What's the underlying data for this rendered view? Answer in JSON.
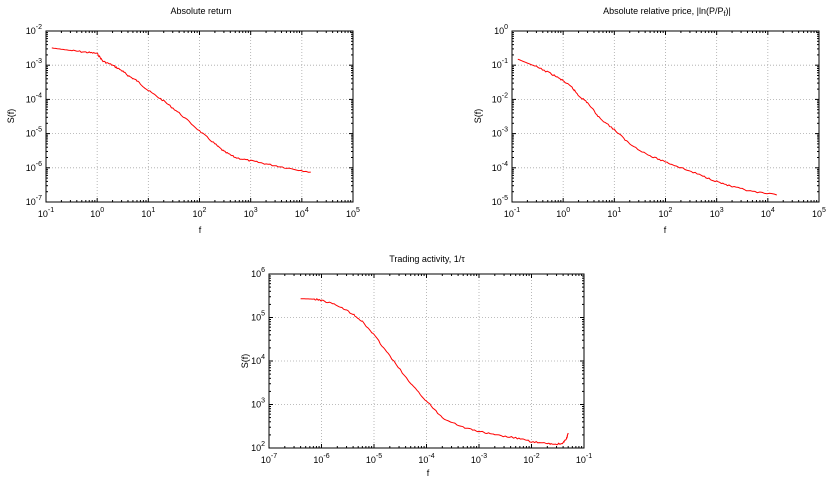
{
  "charts": [
    {
      "type": "line",
      "title": "Absolute return",
      "xlabel": "f",
      "ylabel": "S(f)",
      "x_scale": "log",
      "y_scale": "log",
      "xlim": [
        0.1,
        100000
      ],
      "ylim": [
        1e-07,
        0.01
      ],
      "x_tick_labels": [
        {
          "base": "10",
          "exp": "-1"
        },
        {
          "base": "10",
          "exp": "0"
        },
        {
          "base": "10",
          "exp": "1"
        },
        {
          "base": "10",
          "exp": "2"
        },
        {
          "base": "10",
          "exp": "3"
        },
        {
          "base": "10",
          "exp": "4"
        },
        {
          "base": "10",
          "exp": "5"
        }
      ],
      "y_tick_labels": [
        {
          "base": "10",
          "exp": "-7"
        },
        {
          "base": "10",
          "exp": "-6"
        },
        {
          "base": "10",
          "exp": "-5"
        },
        {
          "base": "10",
          "exp": "-4"
        },
        {
          "base": "10",
          "exp": "-3"
        },
        {
          "base": "10",
          "exp": "-2"
        }
      ],
      "grid": true,
      "series_color": "#ff0000",
      "series": [
        {
          "x": [
            0.13,
            0.3,
            0.6,
            1.0,
            1.3,
            2.0,
            3.0,
            4.0,
            6.0,
            10,
            20,
            40,
            100,
            200,
            300,
            500,
            1000,
            2000,
            5000,
            15000
          ],
          "y": [
            0.0032,
            0.0027,
            0.0024,
            0.0022,
            0.0013,
            0.001,
            0.0007,
            0.0005,
            0.00035,
            0.00018,
            9e-05,
            4e-05,
            1.2e-05,
            5e-06,
            3e-06,
            2e-06,
            1.6e-06,
            1.3e-06,
            1e-06,
            7.5e-07
          ]
        }
      ]
    },
    {
      "type": "line",
      "title_prefix": "Absolute relative price, |ln(P/P",
      "title_sub": "f",
      "title_suffix": ")|",
      "xlabel": "f",
      "ylabel": "S(f)",
      "x_scale": "log",
      "y_scale": "log",
      "xlim": [
        0.1,
        100000
      ],
      "ylim": [
        1e-05,
        1
      ],
      "x_tick_labels": [
        {
          "base": "10",
          "exp": "-1"
        },
        {
          "base": "10",
          "exp": "0"
        },
        {
          "base": "10",
          "exp": "1"
        },
        {
          "base": "10",
          "exp": "2"
        },
        {
          "base": "10",
          "exp": "3"
        },
        {
          "base": "10",
          "exp": "4"
        },
        {
          "base": "10",
          "exp": "5"
        }
      ],
      "y_tick_labels": [
        {
          "base": "10",
          "exp": "-5"
        },
        {
          "base": "10",
          "exp": "-4"
        },
        {
          "base": "10",
          "exp": "-3"
        },
        {
          "base": "10",
          "exp": "-2"
        },
        {
          "base": "10",
          "exp": "-1"
        },
        {
          "base": "10",
          "exp": "0"
        }
      ],
      "grid": true,
      "series_color": "#ff0000",
      "series": [
        {
          "x": [
            0.13,
            0.3,
            0.6,
            1.0,
            1.5,
            2.0,
            3.0,
            5.0,
            10,
            20,
            50,
            100,
            200,
            500,
            1000,
            2000,
            5000,
            15000
          ],
          "y": [
            0.15,
            0.09,
            0.055,
            0.035,
            0.022,
            0.013,
            0.008,
            0.003,
            0.0013,
            0.0005,
            0.00022,
            0.00015,
            0.0001,
            6e-05,
            4e-05,
            2.8e-05,
            2e-05,
            1.6e-05
          ]
        }
      ]
    },
    {
      "type": "line",
      "title_prefix": "Trading activity, 1/",
      "title_symbol": "τ",
      "xlabel": "f",
      "ylabel": "S(f)",
      "x_scale": "log",
      "y_scale": "log",
      "xlim": [
        1e-07,
        0.1
      ],
      "ylim": [
        100,
        1000000
      ],
      "x_tick_labels": [
        {
          "base": "10",
          "exp": "-7"
        },
        {
          "base": "10",
          "exp": "-6"
        },
        {
          "base": "10",
          "exp": "-5"
        },
        {
          "base": "10",
          "exp": "-4"
        },
        {
          "base": "10",
          "exp": "-3"
        },
        {
          "base": "10",
          "exp": "-2"
        },
        {
          "base": "10",
          "exp": "-1"
        }
      ],
      "y_tick_labels": [
        {
          "base": "10",
          "exp": "2"
        },
        {
          "base": "10",
          "exp": "3"
        },
        {
          "base": "10",
          "exp": "4"
        },
        {
          "base": "10",
          "exp": "5"
        },
        {
          "base": "10",
          "exp": "6"
        }
      ],
      "grid": true,
      "series_color": "#ff0000",
      "series": [
        {
          "x": [
            4e-07,
            7e-07,
            1e-06,
            2e-06,
            4e-06,
            6e-06,
            1e-05,
            2e-05,
            5e-05,
            0.0001,
            0.0002,
            0.0005,
            0.001,
            0.002,
            0.005,
            0.01,
            0.02,
            0.03,
            0.04,
            0.046,
            0.05
          ],
          "y": [
            270000.0,
            265000.0,
            250000.0,
            190000.0,
            120000.0,
            80000.0,
            40000.0,
            13000.0,
            3000.0,
            1200.0,
            500,
            300,
            240,
            200,
            170,
            140,
            125,
            122,
            130,
            160,
            220
          ]
        }
      ]
    }
  ]
}
